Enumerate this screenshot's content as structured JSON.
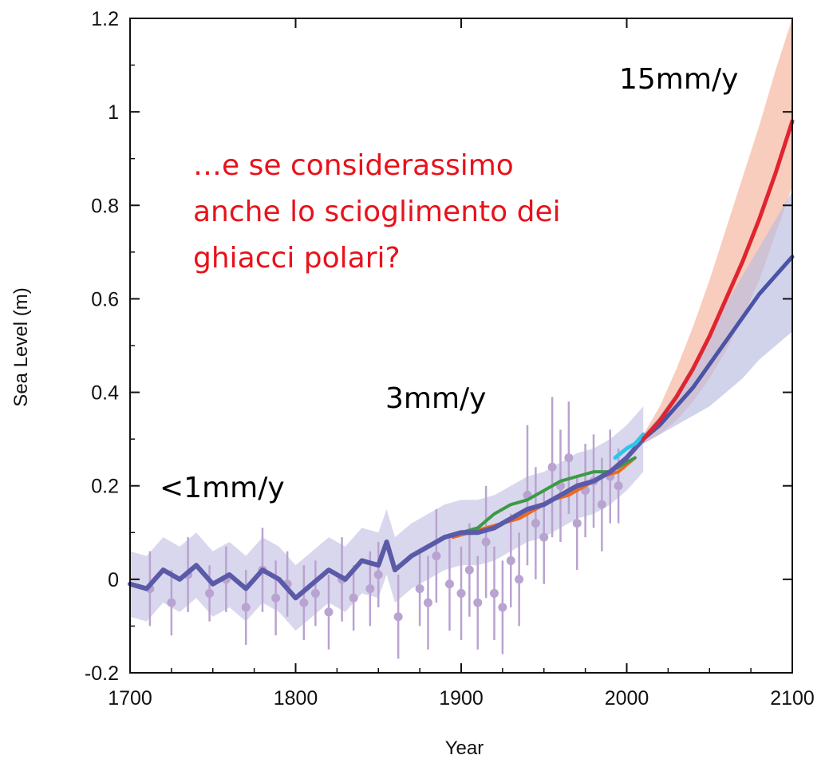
{
  "chart_data": {
    "type": "line",
    "xlabel": "Year",
    "ylabel": "Sea Level (m)",
    "xlim": [
      1700,
      2100
    ],
    "ylim": [
      -0.2,
      1.2
    ],
    "xticks": [
      1700,
      1800,
      1900,
      2000,
      2100
    ],
    "yticks": [
      -0.2,
      0,
      0.2,
      0.4,
      0.6,
      0.8,
      1,
      1.2
    ],
    "ytick_labels": [
      "-0.2",
      "0",
      "0.2",
      "0.4",
      "0.6",
      "0.8",
      "1",
      "1.2"
    ],
    "grid": false,
    "colors": {
      "reconstruction": "#5a5aa8",
      "reconstruction_band": "#c9c6e6",
      "proxy_points": "#b9a3d0",
      "tide_gauge_green": "#3a9b46",
      "tide_gauge_orange": "#ee6a1e",
      "satellite": "#2ec6e8",
      "high_scenario": "#e02530",
      "high_band": "#f4b29a",
      "low_scenario": "#4a54a6",
      "low_band": "#b8bce0"
    },
    "series": [
      {
        "x": [
          1700,
          1710,
          1720,
          1730,
          1740,
          1750,
          1760,
          1770,
          1780,
          1790,
          1800,
          1810,
          1820,
          1830,
          1840,
          1850,
          1855,
          1860,
          1870,
          1880,
          1890,
          1900,
          1910,
          1920,
          1930,
          1940,
          1950,
          1960,
          1970,
          1980,
          1990,
          2000,
          2010
        ],
        "y": [
          -0.01,
          -0.02,
          0.02,
          0.0,
          0.03,
          -0.01,
          0.01,
          -0.02,
          0.02,
          0.0,
          -0.04,
          -0.01,
          0.02,
          0.0,
          0.04,
          0.03,
          0.08,
          0.02,
          0.05,
          0.07,
          0.09,
          0.1,
          0.1,
          0.11,
          0.13,
          0.15,
          0.16,
          0.18,
          0.2,
          0.21,
          0.23,
          0.26,
          0.3
        ]
      },
      {
        "x": [
          1900,
          1910,
          1920,
          1930,
          1940,
          1950,
          1960,
          1970,
          1980,
          1990,
          2000,
          2005
        ],
        "y": [
          0.1,
          0.11,
          0.14,
          0.16,
          0.17,
          0.19,
          0.21,
          0.22,
          0.23,
          0.23,
          0.25,
          0.26
        ]
      },
      {
        "x": [
          1895,
          1905,
          1915,
          1925,
          1935,
          1945,
          1955,
          1965,
          1975,
          1985,
          1995,
          2005
        ],
        "y": [
          0.09,
          0.1,
          0.11,
          0.12,
          0.13,
          0.15,
          0.17,
          0.18,
          0.2,
          0.22,
          0.23,
          0.26
        ]
      },
      {
        "x": [
          1993,
          2000,
          2005,
          2010
        ],
        "y": [
          0.26,
          0.28,
          0.29,
          0.31
        ]
      },
      {
        "x": [
          2010,
          2020,
          2030,
          2040,
          2050,
          2060,
          2070,
          2080,
          2090,
          2100
        ],
        "y": [
          0.3,
          0.34,
          0.39,
          0.45,
          0.52,
          0.6,
          0.68,
          0.77,
          0.87,
          0.98
        ],
        "band_upper": [
          0.31,
          0.37,
          0.45,
          0.54,
          0.64,
          0.75,
          0.86,
          0.97,
          1.09,
          1.2
        ],
        "band_lower": [
          0.29,
          0.31,
          0.34,
          0.38,
          0.43,
          0.49,
          0.56,
          0.64,
          0.74,
          0.84
        ]
      },
      {
        "x": [
          2010,
          2020,
          2030,
          2040,
          2050,
          2060,
          2070,
          2080,
          2090,
          2100
        ],
        "y": [
          0.3,
          0.33,
          0.37,
          0.41,
          0.46,
          0.51,
          0.56,
          0.61,
          0.65,
          0.69
        ],
        "band_upper": [
          0.31,
          0.35,
          0.4,
          0.46,
          0.52,
          0.59,
          0.65,
          0.71,
          0.77,
          0.83
        ],
        "band_lower": [
          0.29,
          0.31,
          0.33,
          0.35,
          0.37,
          0.4,
          0.43,
          0.47,
          0.5,
          0.53
        ]
      }
    ],
    "proxy_points": {
      "x": [
        1712,
        1725,
        1735,
        1748,
        1758,
        1770,
        1780,
        1788,
        1795,
        1805,
        1812,
        1820,
        1828,
        1835,
        1845,
        1850,
        1862,
        1875,
        1880,
        1885,
        1893,
        1900,
        1905,
        1910,
        1915,
        1920,
        1925,
        1930,
        1935,
        1940,
        1945,
        1950,
        1955,
        1960,
        1965,
        1970,
        1975,
        1980,
        1985,
        1990,
        1995
      ],
      "y": [
        -0.02,
        -0.05,
        0.01,
        -0.03,
        0.0,
        -0.06,
        0.02,
        -0.04,
        -0.01,
        -0.05,
        -0.03,
        -0.07,
        0.0,
        -0.04,
        -0.02,
        0.01,
        -0.08,
        -0.02,
        -0.05,
        0.05,
        -0.01,
        -0.03,
        0.02,
        -0.05,
        0.08,
        -0.03,
        -0.06,
        0.04,
        0.0,
        0.18,
        0.12,
        0.09,
        0.24,
        0.2,
        0.26,
        0.12,
        0.19,
        0.21,
        0.16,
        0.22,
        0.2
      ],
      "err": [
        0.08,
        0.07,
        0.08,
        0.06,
        0.07,
        0.08,
        0.09,
        0.08,
        0.07,
        0.08,
        0.07,
        0.08,
        0.09,
        0.07,
        0.08,
        0.07,
        0.09,
        0.08,
        0.1,
        0.1,
        0.1,
        0.1,
        0.1,
        0.1,
        0.12,
        0.1,
        0.1,
        0.1,
        0.1,
        0.15,
        0.12,
        0.1,
        0.15,
        0.12,
        0.12,
        0.1,
        0.1,
        0.1,
        0.1,
        0.1,
        0.08
      ]
    },
    "annotations": [
      {
        "text": "<1mm/y",
        "style": "black"
      },
      {
        "text": "3mm/y",
        "style": "black"
      },
      {
        "text": "15mm/y",
        "style": "black"
      },
      {
        "text": "…e se considerassimo",
        "style": "red"
      },
      {
        "text": "anche lo scioglimento dei",
        "style": "red"
      },
      {
        "text": "ghiacci polari?",
        "style": "red"
      }
    ]
  }
}
